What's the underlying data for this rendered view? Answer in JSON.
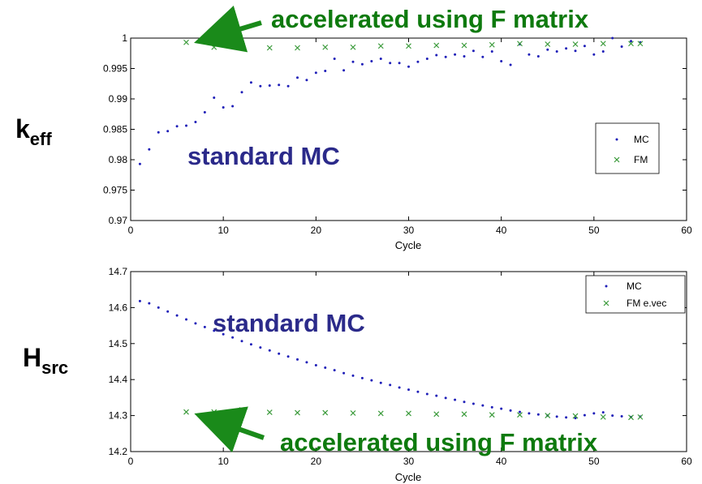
{
  "chart_data": [
    {
      "type": "scatter",
      "id": "keff",
      "title": "",
      "ylabel_main": "k",
      "ylabel_sub": "eff",
      "xlabel": "Cycle",
      "xlim": [
        0,
        60
      ],
      "ylim": [
        0.97,
        1.0
      ],
      "xticks": [
        "0",
        "10",
        "20",
        "30",
        "40",
        "50",
        "60"
      ],
      "yticks": [
        "0.97",
        "0.975",
        "0.98",
        "0.985",
        "0.99",
        "0.995",
        "1"
      ],
      "legend": {
        "position": "right-middle",
        "entries": [
          "MC",
          "FM"
        ]
      },
      "series": [
        {
          "name": "MC",
          "marker": "dot",
          "color": "#1f1fb8",
          "x": [
            1,
            2,
            3,
            4,
            5,
            6,
            7,
            8,
            9,
            10,
            11,
            12,
            13,
            14,
            15,
            16,
            17,
            18,
            19,
            20,
            21,
            22,
            23,
            24,
            25,
            26,
            27,
            28,
            29,
            30,
            31,
            32,
            33,
            34,
            35,
            36,
            37,
            38,
            39,
            40,
            41,
            42,
            43,
            44,
            45,
            46,
            47,
            48,
            49,
            50,
            51,
            52,
            53,
            54,
            55
          ],
          "y": [
            0.9793,
            0.9817,
            0.9845,
            0.9847,
            0.9855,
            0.9856,
            0.9862,
            0.9878,
            0.9902,
            0.9886,
            0.9888,
            0.9911,
            0.9927,
            0.9921,
            0.9922,
            0.9923,
            0.9921,
            0.9935,
            0.9931,
            0.9943,
            0.9946,
            0.9966,
            0.9947,
            0.9961,
            0.9957,
            0.9962,
            0.9966,
            0.9959,
            0.9959,
            0.9953,
            0.9961,
            0.9966,
            0.9972,
            0.9969,
            0.9973,
            0.997,
            0.9979,
            0.9969,
            0.9978,
            0.9962,
            0.9956,
            0.999,
            0.9973,
            0.997,
            0.9981,
            0.9978,
            0.9983,
            0.9979,
            0.9987,
            0.9973,
            0.9978,
            1.0,
            0.9986,
            0.9995,
            0.9993
          ]
        },
        {
          "name": "FM",
          "marker": "x",
          "color": "#3a9a3a",
          "x": [
            6,
            9,
            12,
            15,
            18,
            21,
            24,
            27,
            30,
            33,
            36,
            39,
            42,
            45,
            48,
            51,
            54,
            55
          ],
          "y": [
            0.9993,
            0.9985,
            0.9984,
            0.9984,
            0.9984,
            0.9985,
            0.9985,
            0.9987,
            0.9987,
            0.9988,
            0.9988,
            0.9989,
            0.9991,
            0.999,
            0.999,
            0.9991,
            0.9991,
            0.9991
          ]
        }
      ],
      "annotations": {
        "accelerated": "accelerated using F matrix",
        "standard": "standard MC"
      }
    },
    {
      "type": "scatter",
      "id": "hsrc",
      "title": "",
      "ylabel_main": "H",
      "ylabel_sub": "src",
      "xlabel": "Cycle",
      "xlim": [
        0,
        60
      ],
      "ylim": [
        14.2,
        14.7
      ],
      "xticks": [
        "0",
        "10",
        "20",
        "30",
        "40",
        "50",
        "60"
      ],
      "yticks": [
        "14.2",
        "14.3",
        "14.4",
        "14.5",
        "14.6",
        "14.7"
      ],
      "legend": {
        "position": "top-right",
        "entries": [
          "MC",
          "FM e.vec"
        ]
      },
      "series": [
        {
          "name": "MC",
          "marker": "dot",
          "color": "#1f1fb8",
          "x": [
            1,
            2,
            3,
            4,
            5,
            6,
            7,
            8,
            9,
            10,
            11,
            12,
            13,
            14,
            15,
            16,
            17,
            18,
            19,
            20,
            21,
            22,
            23,
            24,
            25,
            26,
            27,
            28,
            29,
            30,
            31,
            32,
            33,
            34,
            35,
            36,
            37,
            38,
            39,
            40,
            41,
            42,
            43,
            44,
            45,
            46,
            47,
            48,
            49,
            50,
            51,
            52,
            53,
            54,
            55
          ],
          "y": [
            14.618,
            14.612,
            14.6,
            14.589,
            14.578,
            14.567,
            14.556,
            14.546,
            14.536,
            14.526,
            14.517,
            14.507,
            14.498,
            14.489,
            14.481,
            14.472,
            14.464,
            14.456,
            14.448,
            14.44,
            14.433,
            14.426,
            14.418,
            14.411,
            14.404,
            14.398,
            14.391,
            14.385,
            14.378,
            14.372,
            14.366,
            14.36,
            14.355,
            14.349,
            14.344,
            14.338,
            14.333,
            14.328,
            14.323,
            14.319,
            14.314,
            14.31,
            14.306,
            14.303,
            14.3,
            14.297,
            14.295,
            14.293,
            14.301,
            14.306,
            14.309,
            14.3,
            14.298,
            14.296,
            14.297
          ]
        },
        {
          "name": "FM e.vec",
          "marker": "x",
          "color": "#3a9a3a",
          "x": [
            6,
            9,
            12,
            15,
            18,
            21,
            24,
            27,
            30,
            33,
            36,
            39,
            42,
            45,
            48,
            51,
            54,
            55
          ],
          "y": [
            14.31,
            14.31,
            14.316,
            14.309,
            14.308,
            14.308,
            14.307,
            14.306,
            14.306,
            14.304,
            14.304,
            14.302,
            14.302,
            14.3,
            14.299,
            14.296,
            14.295,
            14.296
          ]
        }
      ],
      "annotations": {
        "accelerated": "accelerated using F matrix",
        "standard": "standard MC"
      }
    }
  ],
  "colors": {
    "annotation_green": "#0e7a0e",
    "annotation_blue": "#2b2a8a",
    "arrow_green": "#1a8a1a"
  }
}
